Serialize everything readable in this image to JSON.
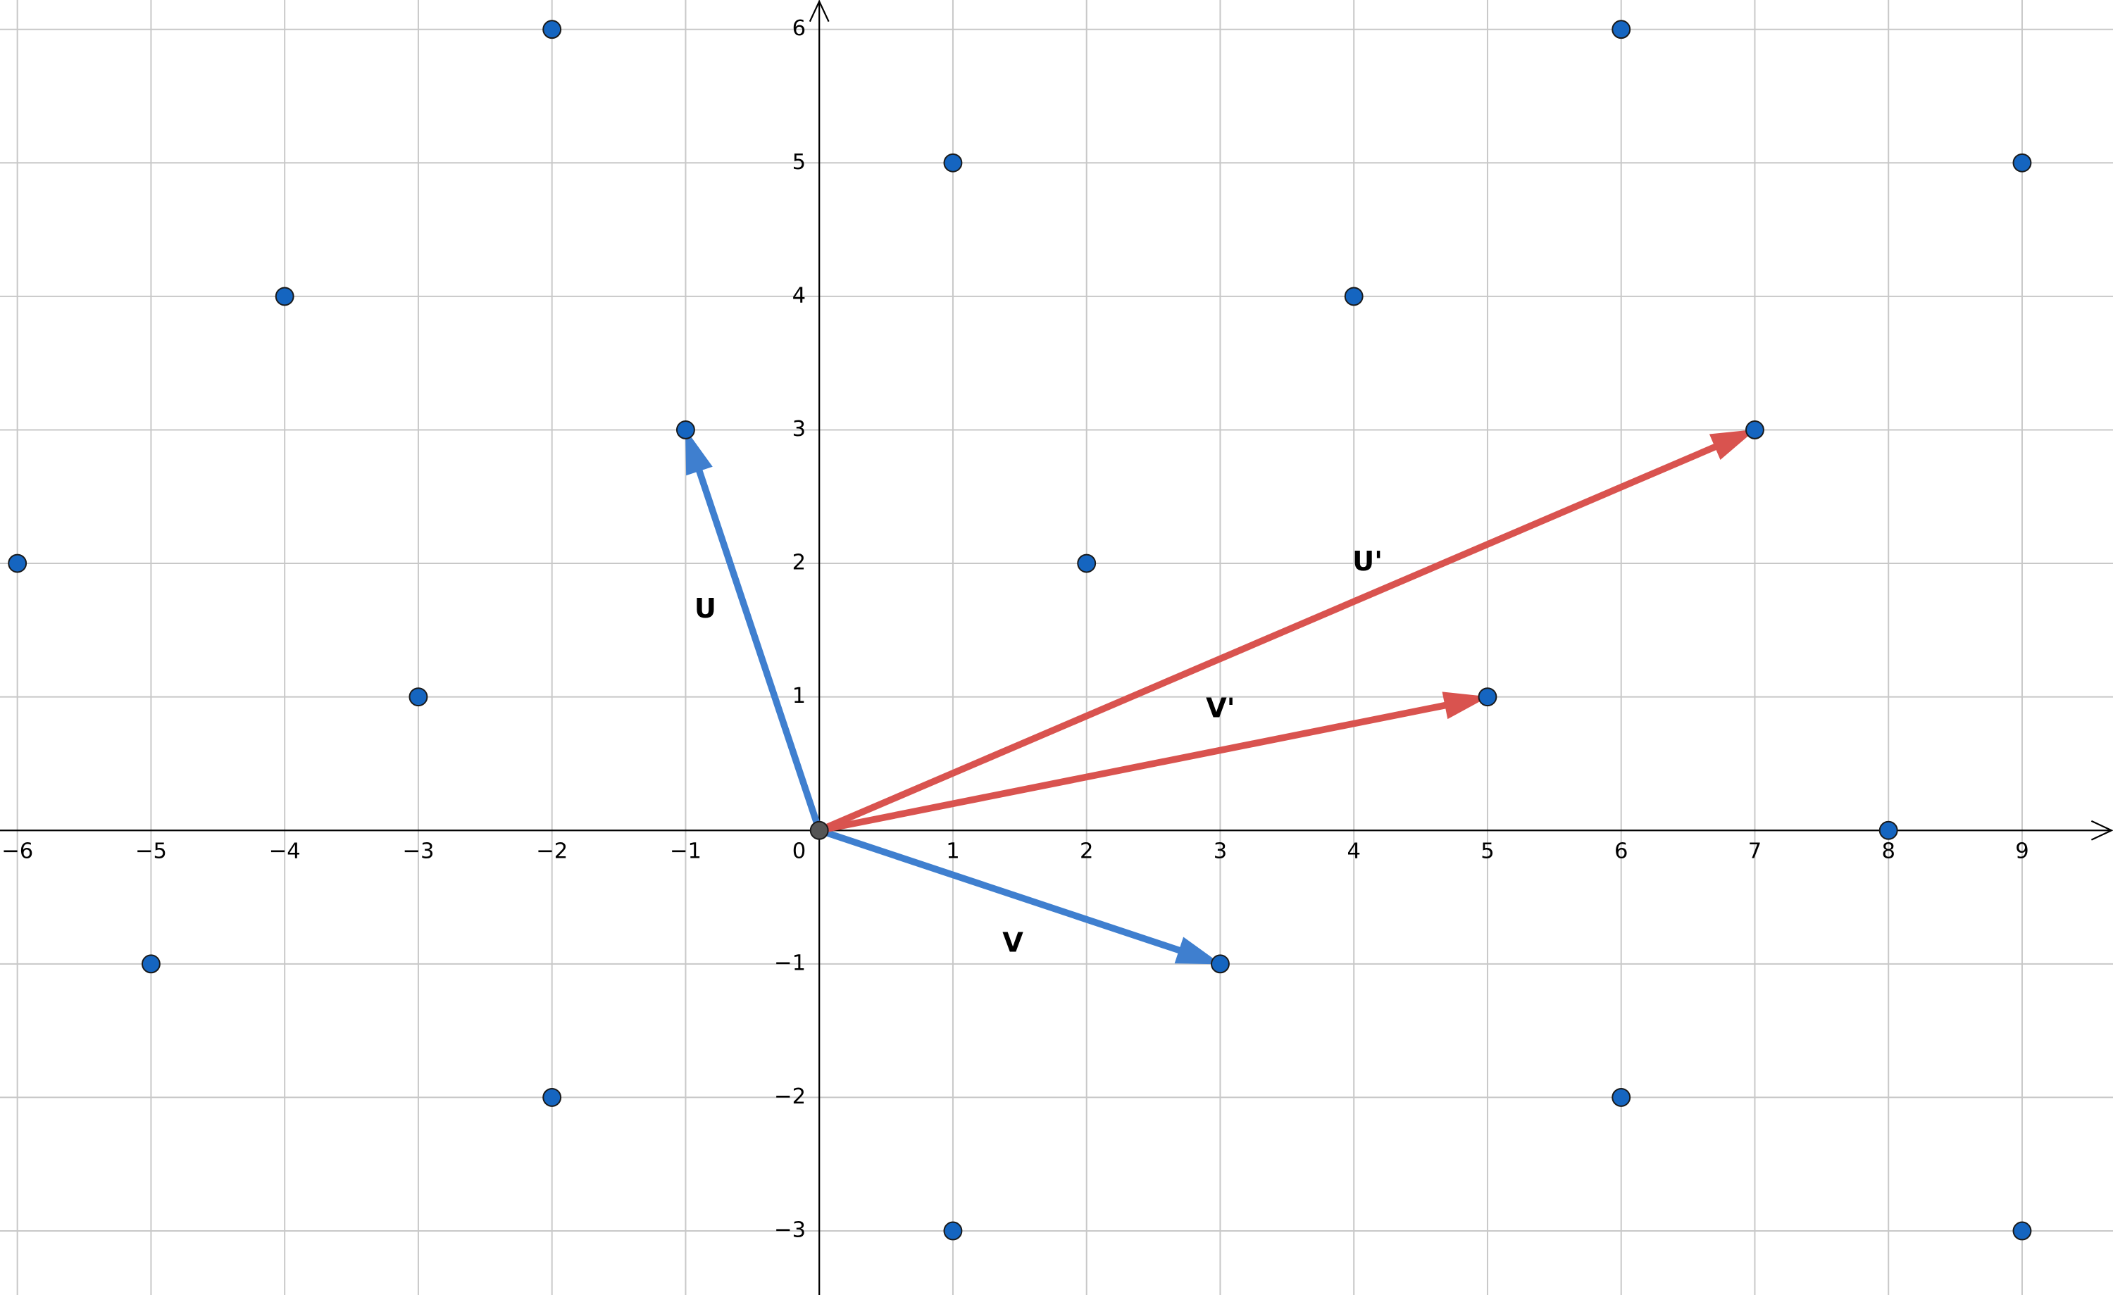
{
  "chart_data": {
    "type": "vector",
    "xlim": [
      -6.13,
      9.68
    ],
    "ylim": [
      -3.48,
      6.22
    ],
    "xticks": [
      {
        "value": -6,
        "label": "−6"
      },
      {
        "value": -5,
        "label": "−5"
      },
      {
        "value": -4,
        "label": "−4"
      },
      {
        "value": -3,
        "label": "−3"
      },
      {
        "value": -2,
        "label": "−2"
      },
      {
        "value": -1,
        "label": "−1"
      },
      0,
      1,
      2,
      3,
      4,
      5,
      6,
      7,
      8,
      9
    ],
    "yticks": [
      {
        "value": -3,
        "label": "−3"
      },
      {
        "value": -2,
        "label": "−2"
      },
      {
        "value": -1,
        "label": "−1"
      },
      1,
      2,
      3,
      4,
      5,
      6
    ],
    "grid": true,
    "series": [
      {
        "color": "#1565c0",
        "x": [
          -2,
          6,
          1,
          9,
          -4,
          4,
          -1,
          7,
          -6,
          2,
          -3,
          5,
          8,
          -5,
          3,
          -2,
          6,
          1,
          9
        ],
        "values": [
          6,
          6,
          5,
          5,
          4,
          4,
          3,
          3,
          2,
          2,
          1,
          1,
          0,
          -1,
          -1,
          -2,
          -2,
          -3,
          -3
        ]
      },
      {
        "color": "#555555",
        "x": [
          0
        ],
        "values": [
          0
        ]
      }
    ],
    "vectors": [
      {
        "label": "U",
        "color": "#3f7fcf",
        "x": -1,
        "y": 3
      },
      {
        "label": "V",
        "color": "#3f7fcf",
        "x": 3,
        "y": -1
      },
      {
        "label": "U'",
        "color": "#d9534f",
        "x": 7,
        "y": 3
      },
      {
        "label": "V'",
        "color": "#d9534f",
        "x": 5,
        "y": 1
      }
    ]
  }
}
